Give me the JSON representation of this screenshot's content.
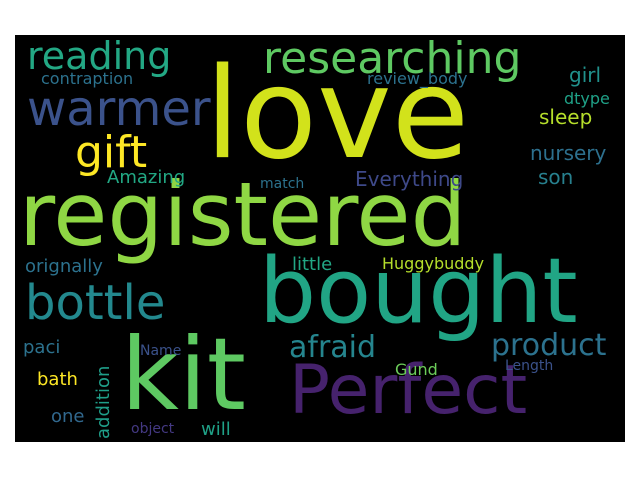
{
  "words": [
    {
      "text": "love",
      "color": "#d2e21b"
    },
    {
      "text": "registered",
      "color": "#8fd744"
    },
    {
      "text": "bought",
      "color": "#21a585"
    },
    {
      "text": "kit",
      "color": "#5ec962"
    },
    {
      "text": "Perfect",
      "color": "#46226d"
    },
    {
      "text": "researching",
      "color": "#5ec962"
    },
    {
      "text": "reading",
      "color": "#23a884"
    },
    {
      "text": "warmer",
      "color": "#3b528b"
    },
    {
      "text": "bottle",
      "color": "#23898e"
    },
    {
      "text": "gift",
      "color": "#fde725"
    },
    {
      "text": "product",
      "color": "#2c728e"
    },
    {
      "text": "afraid",
      "color": "#25858e"
    },
    {
      "text": "contraption",
      "color": "#2c728e"
    },
    {
      "text": "review_body",
      "color": "#2c728e"
    },
    {
      "text": "girl",
      "color": "#21918c"
    },
    {
      "text": "dtype",
      "color": "#1fa187"
    },
    {
      "text": "sleep",
      "color": "#b5de2b"
    },
    {
      "text": "nursery",
      "color": "#2d708e"
    },
    {
      "text": "son",
      "color": "#27808e"
    },
    {
      "text": "Everything",
      "color": "#3e4989"
    },
    {
      "text": "Amazing",
      "color": "#22a884"
    },
    {
      "text": "match",
      "color": "#2c728e"
    },
    {
      "text": "little",
      "color": "#22a785"
    },
    {
      "text": "Huggybuddy",
      "color": "#b5de2b"
    },
    {
      "text": "orignally",
      "color": "#2c728e"
    },
    {
      "text": "paci",
      "color": "#2c728e"
    },
    {
      "text": "Name",
      "color": "#3b528b"
    },
    {
      "text": "bath",
      "color": "#fde725"
    },
    {
      "text": "Gund",
      "color": "#6ccd5a"
    },
    {
      "text": "Length",
      "color": "#3b528b"
    },
    {
      "text": "one",
      "color": "#31688e"
    },
    {
      "text": "object",
      "color": "#443983"
    },
    {
      "text": "will",
      "color": "#1fa187"
    },
    {
      "text": "addition",
      "color": "#1f9e89"
    }
  ]
}
